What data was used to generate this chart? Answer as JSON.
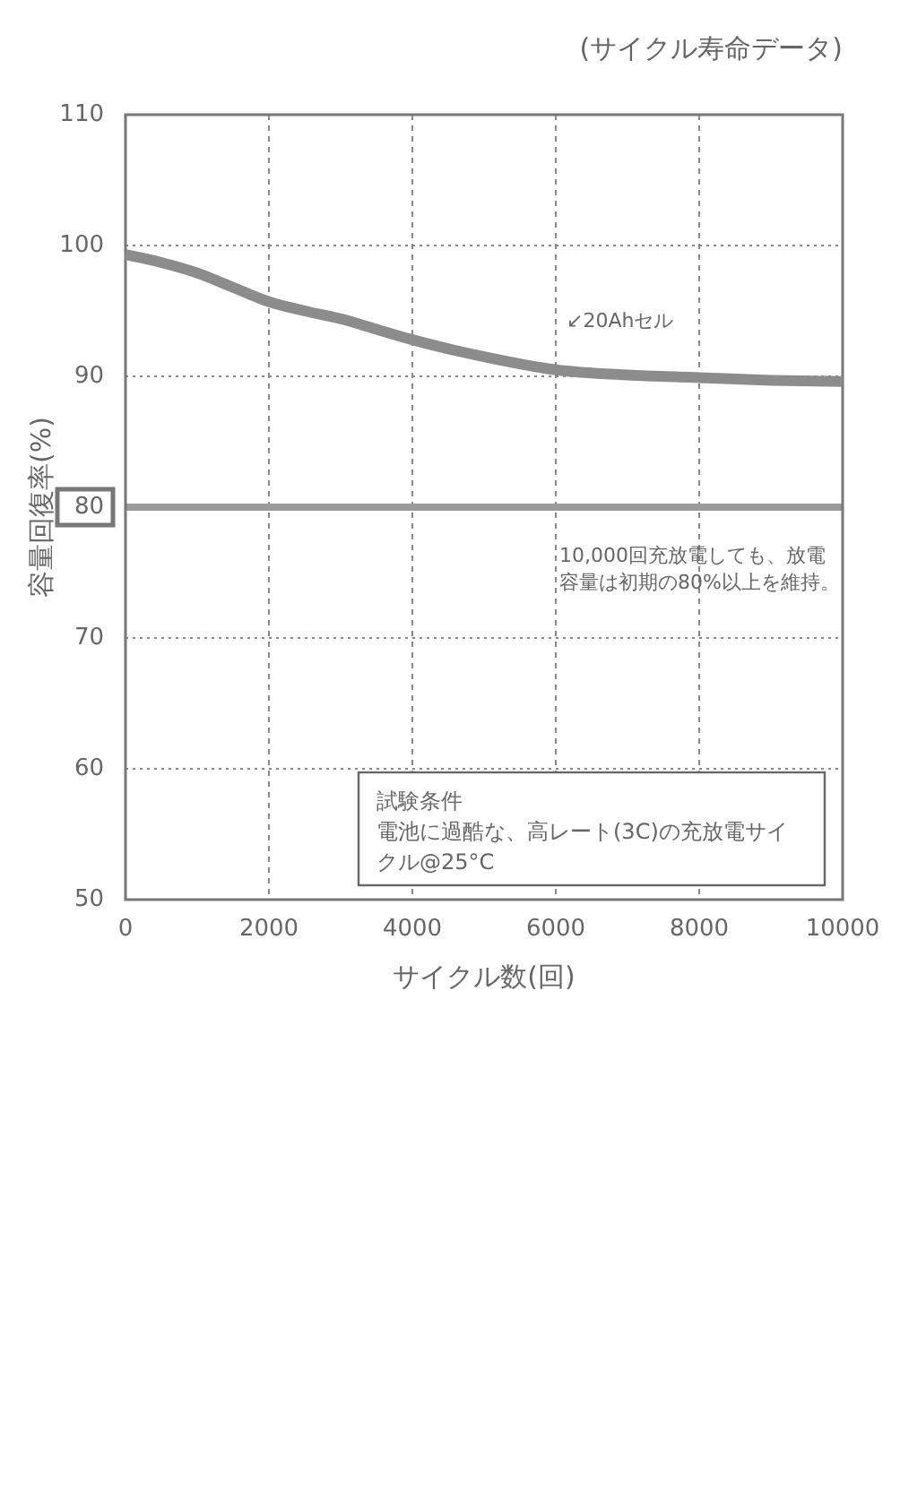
{
  "chart_data": {
    "type": "line",
    "title": "(サイクル寿命データ)",
    "xlabel": "サイクル数(回)",
    "ylabel": "容量回復率(%)",
    "x": [
      0,
      500,
      1000,
      1500,
      2000,
      2500,
      3000,
      3500,
      4000,
      5000,
      6000,
      7000,
      8000,
      9000,
      10000
    ],
    "series": [
      {
        "color": "#8c8c8c",
        "values": [
          99.3,
          98.7,
          97.9,
          96.8,
          95.7,
          95.0,
          94.4,
          93.6,
          92.8,
          91.5,
          90.5,
          90.1,
          89.9,
          89.7,
          89.6
        ]
      }
    ],
    "xlim": [
      0,
      10000
    ],
    "xticks": [
      0,
      2000,
      4000,
      6000,
      8000,
      10000
    ],
    "ylim": [
      50,
      110
    ],
    "yticks": [
      50,
      60,
      70,
      80,
      90,
      100,
      110
    ],
    "grid": true,
    "marker": "none",
    "line_style": "solid",
    "ref_lines": [
      {
        "axis": "y",
        "value": 80,
        "color": "#9a9a9a"
      }
    ],
    "annotations": [
      "↙20Ahセル",
      "10,000回充放電しても、放電容量は初期の80%以上を維持。",
      "試験条件",
      "電池に過酷な、高レート(3C)の充放電サイクル@25°C"
    ]
  }
}
